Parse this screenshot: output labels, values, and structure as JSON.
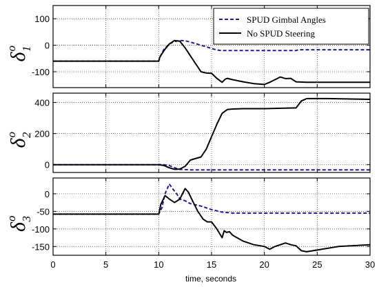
{
  "chart_data": {
    "type": "line",
    "xlabel": "time, seconds",
    "xlim": [
      0,
      30
    ],
    "xticks": [
      0,
      5,
      10,
      15,
      20,
      25,
      30
    ],
    "grid": true,
    "legend": {
      "placement": "top-right",
      "entries": [
        {
          "name": "SPUD Gimbal Angles",
          "color": "#1a1aa6",
          "style": "dashed"
        },
        {
          "name": "No SPUD Steering",
          "color": "#000000",
          "style": "solid"
        }
      ]
    },
    "subplots": [
      {
        "ylabel_main": "δ",
        "ylabel_super": "o",
        "ylabel_sub": "1",
        "ylim": [
          -160,
          150
        ],
        "yticks": [
          100,
          0,
          -100
        ],
        "series": [
          {
            "name": "SPUD Gimbal Angles",
            "color": "#1a1aa6",
            "style": "dashed",
            "x": [
              0,
              10,
              10.1,
              10.5,
              11,
              11.5,
              12,
              12.5,
              13,
              14,
              15,
              15.5,
              16,
              17,
              18,
              20,
              23,
              23.2,
              25,
              30
            ],
            "y": [
              -60,
              -60,
              -45,
              -15,
              5,
              14,
              18,
              17,
              12,
              0,
              -12,
              -18,
              -20,
              -20,
              -20,
              -20,
              -20,
              -17,
              -17,
              -17
            ]
          },
          {
            "name": "No SPUD Steering",
            "color": "#000000",
            "style": "solid",
            "x": [
              0,
              10,
              10.1,
              10.5,
              11,
              11.5,
              12,
              12.5,
              13,
              13.5,
              14,
              14.5,
              15,
              15.5,
              16,
              16.3,
              16.5,
              17,
              18,
              19,
              20,
              20.5,
              21,
              21.5,
              22,
              22.5,
              23,
              24,
              26,
              30
            ],
            "y": [
              -60,
              -60,
              -45,
              -20,
              5,
              18,
              15,
              -10,
              -40,
              -70,
              -100,
              -105,
              -106,
              -125,
              -140,
              -128,
              -125,
              -130,
              -138,
              -145,
              -148,
              -140,
              -130,
              -120,
              -126,
              -125,
              -138,
              -140,
              -140,
              -140
            ]
          }
        ]
      },
      {
        "ylabel_main": "δ",
        "ylabel_super": "o",
        "ylabel_sub": "2",
        "ylim": [
          -50,
          460
        ],
        "yticks": [
          400,
          200,
          0
        ],
        "series": [
          {
            "name": "SPUD Gimbal Angles",
            "color": "#1a1aa6",
            "style": "dashed",
            "x": [
              0,
              10,
              10.3,
              11,
              11.5,
              12,
              13,
              15,
              20,
              25,
              30
            ],
            "y": [
              0,
              0,
              2,
              -5,
              -20,
              -30,
              -33,
              -33,
              -33,
              -33,
              -33
            ]
          },
          {
            "name": "No SPUD Steering",
            "color": "#000000",
            "style": "solid",
            "x": [
              0,
              10,
              10.5,
              11,
              11.5,
              12,
              12.5,
              13,
              14,
              14.5,
              15,
              15.5,
              16,
              16.5,
              17,
              18,
              20,
              23,
              23.5,
              24,
              26,
              30
            ],
            "y": [
              0,
              0,
              -5,
              -20,
              -30,
              -28,
              -10,
              30,
              50,
              100,
              180,
              260,
              330,
              355,
              358,
              360,
              360,
              365,
              410,
              425,
              425,
              420
            ]
          }
        ]
      },
      {
        "ylabel_main": "δ",
        "ylabel_super": "o",
        "ylabel_sub": "3",
        "ylim": [
          -175,
          45
        ],
        "yticks": [
          0,
          -50,
          -100,
          -150
        ],
        "series": [
          {
            "name": "SPUD Gimbal Angles",
            "color": "#1a1aa6",
            "style": "dashed",
            "x": [
              0,
              10,
              10.3,
              10.6,
              11,
              11.3,
              11.7,
              12,
              12.5,
              13,
              14,
              15,
              16,
              17,
              20,
              25,
              30
            ],
            "y": [
              -58,
              -58,
              -40,
              0,
              28,
              15,
              0,
              -15,
              -20,
              -28,
              -35,
              -45,
              -52,
              -55,
              -55,
              -55,
              -55
            ]
          },
          {
            "name": "No SPUD Steering",
            "color": "#000000",
            "style": "solid",
            "x": [
              0,
              10,
              10.2,
              10.6,
              11,
              11.5,
              12,
              12.5,
              12.8,
              13.2,
              13.7,
              14.2,
              14.6,
              15,
              15.5,
              16,
              16.2,
              16.4,
              16.7,
              17,
              18,
              19,
              20,
              20.5,
              21,
              22,
              22.5,
              23,
              23.5,
              24,
              25,
              27,
              30
            ],
            "y": [
              -58,
              -58,
              -30,
              -5,
              -15,
              -25,
              -15,
              15,
              5,
              -20,
              -50,
              -72,
              -80,
              -80,
              -100,
              -125,
              -105,
              -110,
              -108,
              -118,
              -135,
              -145,
              -150,
              -158,
              -150,
              -140,
              -145,
              -148,
              -162,
              -165,
              -160,
              -150,
              -145
            ]
          }
        ]
      }
    ]
  }
}
